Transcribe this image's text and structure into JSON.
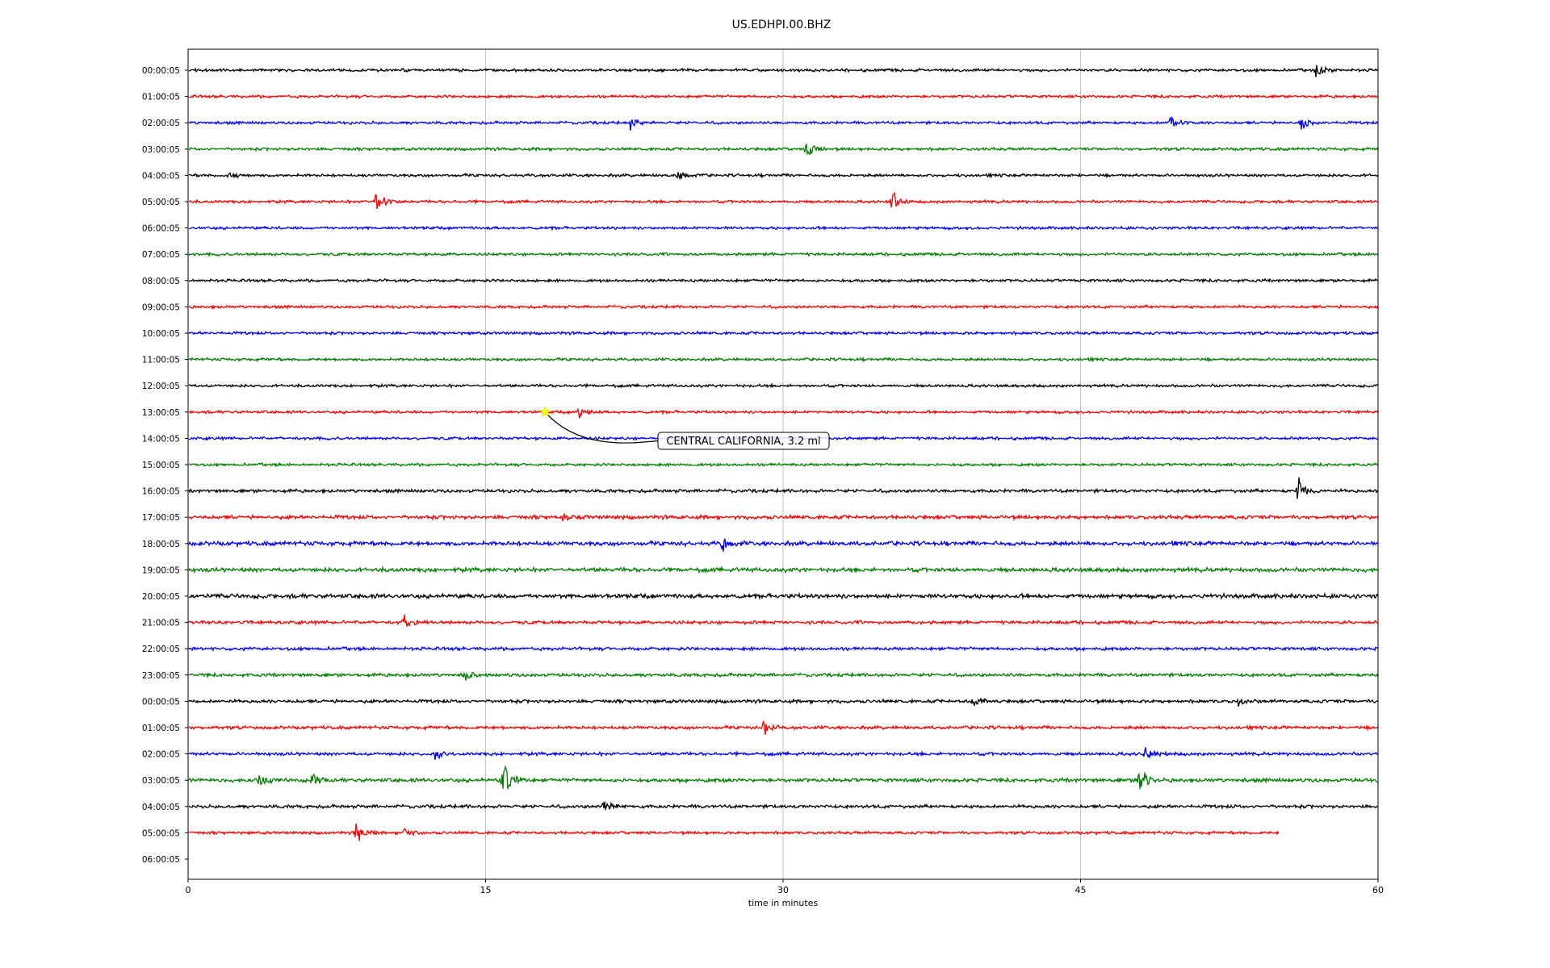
{
  "chart_data": {
    "type": "line",
    "title": "US.EDHPI.00.BHZ",
    "xlabel": "time in minutes",
    "ylabel": "",
    "xlim": [
      0,
      60
    ],
    "xticks": [
      0,
      15,
      30,
      45,
      60
    ],
    "grid": "vertical lines at x ticks",
    "row_labels": [
      "00:00:05",
      "01:00:05",
      "02:00:05",
      "03:00:05",
      "04:00:05",
      "05:00:05",
      "06:00:05",
      "07:00:05",
      "08:00:05",
      "09:00:05",
      "10:00:05",
      "11:00:05",
      "12:00:05",
      "13:00:05",
      "14:00:05",
      "15:00:05",
      "16:00:05",
      "17:00:05",
      "18:00:05",
      "19:00:05",
      "20:00:05",
      "21:00:05",
      "22:00:05",
      "23:00:05",
      "00:00:05",
      "01:00:05",
      "02:00:05",
      "03:00:05",
      "04:00:05",
      "05:00:05",
      "06:00:05"
    ],
    "trace_colors": [
      "#000000",
      "#ff0000",
      "#0000ff",
      "#008000"
    ],
    "trace_end_minutes": [
      60,
      60,
      60,
      60,
      60,
      60,
      60,
      60,
      60,
      60,
      60,
      60,
      60,
      60,
      60,
      60,
      60,
      60,
      60,
      60,
      60,
      60,
      60,
      60,
      60,
      60,
      60,
      60,
      60,
      55,
      null
    ],
    "noise_level": [
      0.6,
      0.6,
      0.6,
      0.6,
      0.6,
      0.6,
      0.6,
      0.6,
      0.6,
      0.6,
      0.6,
      0.6,
      0.6,
      0.6,
      0.6,
      0.6,
      0.7,
      0.8,
      0.9,
      0.9,
      0.9,
      0.7,
      0.7,
      0.7,
      0.7,
      0.7,
      0.7,
      0.8,
      0.7,
      0.6,
      0
    ],
    "bursts": [
      {
        "row": 0,
        "minute": 56.9,
        "amplitude": 12
      },
      {
        "row": 2,
        "minute": 22.3,
        "amplitude": 12
      },
      {
        "row": 2,
        "minute": 49.5,
        "amplitude": 14
      },
      {
        "row": 2,
        "minute": 56.1,
        "amplitude": 12
      },
      {
        "row": 3,
        "minute": 31.2,
        "amplitude": 14
      },
      {
        "row": 4,
        "minute": 2.0,
        "amplitude": 8
      },
      {
        "row": 4,
        "minute": 24.7,
        "amplitude": 7
      },
      {
        "row": 5,
        "minute": 9.5,
        "amplitude": 20
      },
      {
        "row": 5,
        "minute": 35.5,
        "amplitude": 14
      },
      {
        "row": 13,
        "minute": 19.7,
        "amplitude": 8
      },
      {
        "row": 16,
        "minute": 56.0,
        "amplitude": 22
      },
      {
        "row": 17,
        "minute": 18.9,
        "amplitude": 8
      },
      {
        "row": 18,
        "minute": 27.0,
        "amplitude": 10
      },
      {
        "row": 21,
        "minute": 10.9,
        "amplitude": 10
      },
      {
        "row": 23,
        "minute": 14.0,
        "amplitude": 7
      },
      {
        "row": 24,
        "minute": 39.6,
        "amplitude": 10
      },
      {
        "row": 24,
        "minute": 53.0,
        "amplitude": 8
      },
      {
        "row": 25,
        "minute": 29.0,
        "amplitude": 14
      },
      {
        "row": 26,
        "minute": 12.5,
        "amplitude": 12
      },
      {
        "row": 26,
        "minute": 48.2,
        "amplitude": 14
      },
      {
        "row": 27,
        "minute": 3.5,
        "amplitude": 14
      },
      {
        "row": 27,
        "minute": 6.3,
        "amplitude": 10
      },
      {
        "row": 27,
        "minute": 15.9,
        "amplitude": 30
      },
      {
        "row": 27,
        "minute": 48.0,
        "amplitude": 24
      },
      {
        "row": 28,
        "minute": 21.0,
        "amplitude": 10
      },
      {
        "row": 29,
        "minute": 8.5,
        "amplitude": 20
      },
      {
        "row": 29,
        "minute": 10.9,
        "amplitude": 8
      }
    ],
    "annotation": {
      "text": "CENTRAL CALIFORNIA, 3.2 ml",
      "row": 13,
      "minute": 18.0,
      "marker": "star",
      "marker_color": "#ffff00"
    }
  }
}
